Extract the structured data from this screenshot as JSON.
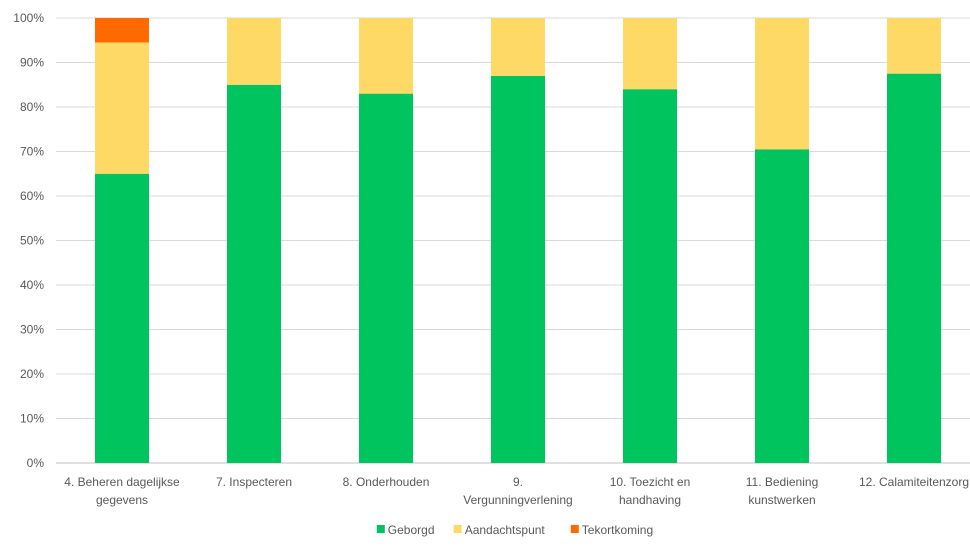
{
  "chart_data": {
    "type": "bar",
    "stacked": true,
    "categories": [
      [
        "4. Beheren dagelijkse",
        "gegevens"
      ],
      [
        "7. Inspecteren"
      ],
      [
        "8. Onderhouden"
      ],
      [
        "9.",
        "Vergunningverlening"
      ],
      [
        "10. Toezicht en",
        "handhaving"
      ],
      [
        "11. Bediening",
        "kunstwerken"
      ],
      [
        "12. Calamiteitenzorg"
      ]
    ],
    "series": [
      {
        "name": "Geborgd",
        "color": "#00c55e",
        "values": [
          0.65,
          0.85,
          0.83,
          0.87,
          0.84,
          0.705,
          0.875
        ]
      },
      {
        "name": "Aandachtspunt",
        "color": "#ffd966",
        "values": [
          0.295,
          0.15,
          0.17,
          0.13,
          0.16,
          0.295,
          0.125
        ]
      },
      {
        "name": "Tekortkoming",
        "color": "#ff6a00",
        "values": [
          0.055,
          0,
          0,
          0,
          0,
          0,
          0
        ]
      }
    ],
    "ylim": [
      0,
      1
    ],
    "y_ticks": [
      "0%",
      "10%",
      "20%",
      "30%",
      "40%",
      "50%",
      "60%",
      "70%",
      "80%",
      "90%",
      "100%"
    ],
    "grid": true,
    "legend_position": "bottom"
  }
}
